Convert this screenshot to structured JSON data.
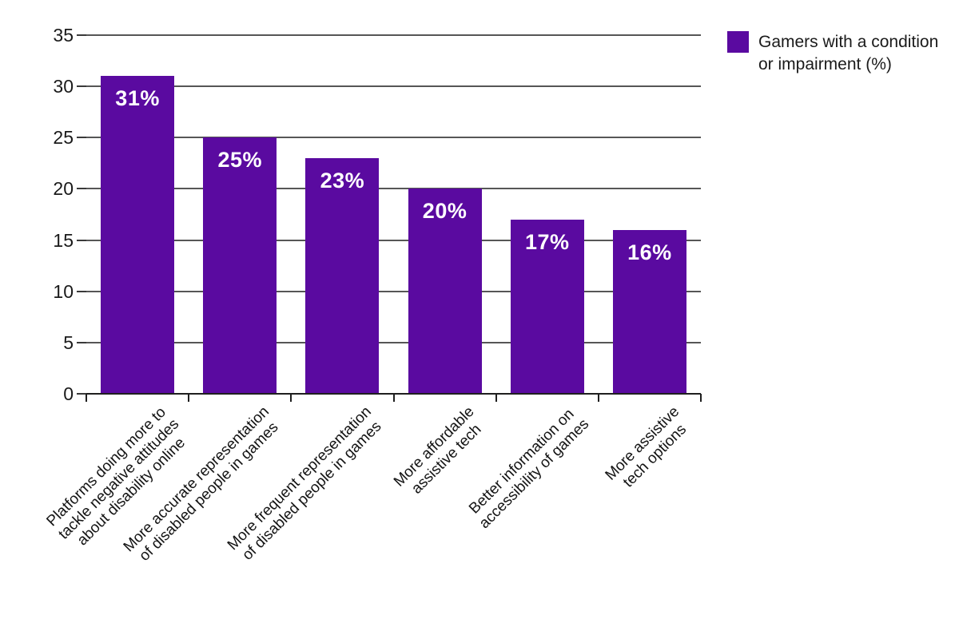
{
  "chart_data": {
    "type": "bar",
    "title": "",
    "categories": [
      "Platforms doing more to tackle negative attitudes about disability online",
      "More accurate representation of disabled people in games",
      "More frequent representation of disabled people in games",
      "More affordable assistive tech",
      "Better information on accessibility of games",
      "More assistive tech options"
    ],
    "category_lines": [
      [
        "Platforms doing more to",
        "tackle negative attitudes",
        "about disability online"
      ],
      [
        "More accurate representation",
        "of disabled people in games"
      ],
      [
        "More frequent representation",
        "of disabled people in games"
      ],
      [
        "More affordable",
        "assistive tech"
      ],
      [
        "Better information on",
        "accessibility of games"
      ],
      [
        "More assistive",
        "tech options"
      ]
    ],
    "values": [
      31,
      25,
      23,
      20,
      17,
      16
    ],
    "value_labels": [
      "31%",
      "25%",
      "23%",
      "20%",
      "17%",
      "16%"
    ],
    "series": [
      {
        "name": "Gamers with a condition or impairment (%)",
        "values": [
          31,
          25,
          23,
          20,
          17,
          16
        ]
      }
    ],
    "xlabel": "",
    "ylabel": "",
    "ylim": [
      0,
      35
    ],
    "yticks": [
      0,
      5,
      10,
      15,
      20,
      25,
      30,
      35
    ],
    "ytick_labels": [
      "0",
      "5",
      "10",
      "15",
      "20",
      "25",
      "30",
      "35"
    ],
    "grid": "horizontal",
    "legend_position": "top-right",
    "bar_color": "#5a0aa0",
    "value_label_color": "#ffffff"
  },
  "legend": {
    "line1": "Gamers with a condition",
    "line2": "or impairment (%)",
    "label": "Gamers with a condition or impairment (%)",
    "swatch_color": "#5a0aa0"
  }
}
